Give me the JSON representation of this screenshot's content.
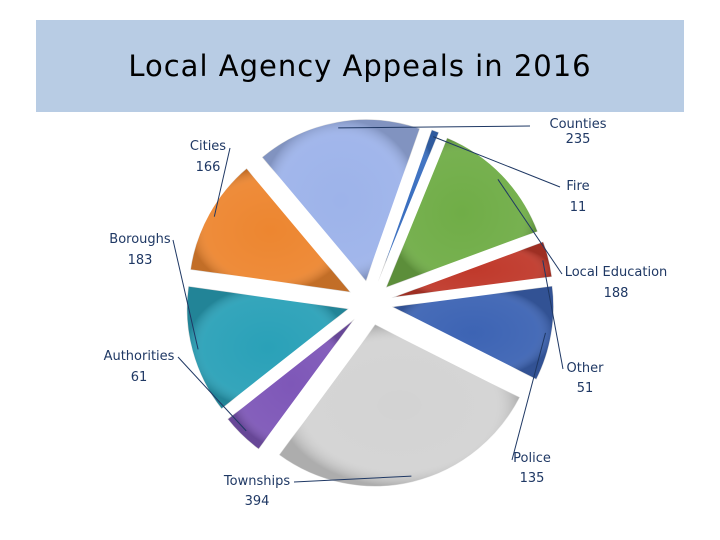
{
  "page": {
    "title": "Local Agency Appeals in 2016"
  },
  "chart_data": {
    "type": "pie",
    "title": "Local Agency Appeals in 2016",
    "exploded": true,
    "slices": [
      {
        "name": "Counties",
        "value": 235,
        "color": "#9db3ea"
      },
      {
        "name": "Fire",
        "value": 11,
        "color": "#3a6fc0"
      },
      {
        "name": "Local Education",
        "value": 188,
        "color": "#70ad47"
      },
      {
        "name": "Other",
        "value": 51,
        "color": "#c0392b"
      },
      {
        "name": "Police",
        "value": 135,
        "color": "#3d64b4"
      },
      {
        "name": "Townships",
        "value": 394,
        "color": "#d3d3d3"
      },
      {
        "name": "Authorities",
        "value": 61,
        "color": "#7e57b8"
      },
      {
        "name": "Boroughs",
        "value": 183,
        "color": "#2aa1b8"
      },
      {
        "name": "Cities",
        "value": 166,
        "color": "#ed8630"
      }
    ]
  }
}
